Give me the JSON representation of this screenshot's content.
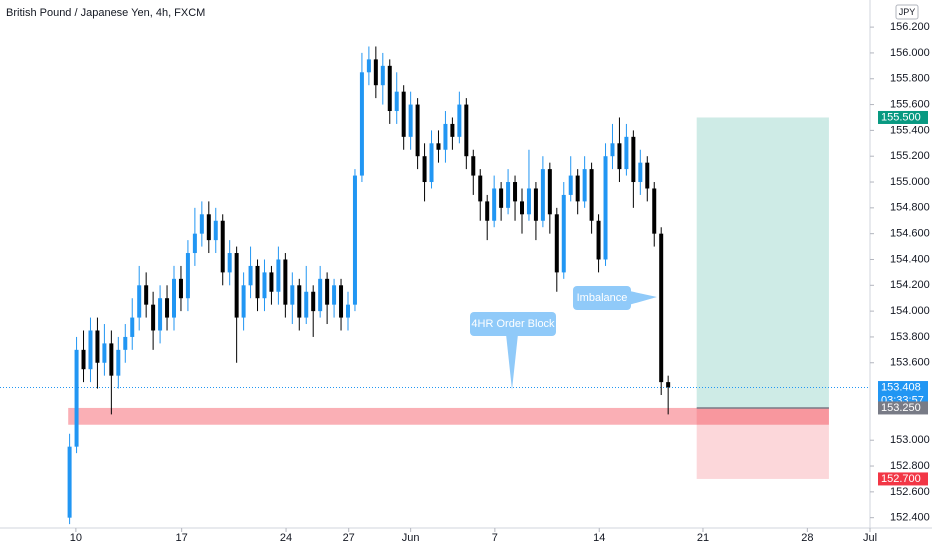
{
  "chart_data": {
    "type": "candlestick",
    "title": "British Pound / Japanese Yen, 4h, FXCM",
    "currency": "JPY",
    "up_color": "#2196f3",
    "down_color": "#000000",
    "x": [
      0,
      1,
      2,
      3,
      4,
      5,
      6,
      7,
      8,
      9,
      10,
      11,
      12,
      13,
      14,
      15,
      16,
      17,
      18,
      19,
      20,
      21,
      22,
      23,
      24,
      25,
      26,
      27,
      28,
      29,
      30,
      31,
      32,
      33,
      34,
      35,
      36,
      37,
      38,
      39,
      40,
      41,
      42,
      43,
      44,
      45,
      46,
      47,
      48,
      49,
      50,
      51,
      52,
      53,
      54,
      55,
      56,
      57,
      58,
      59,
      60,
      61,
      62,
      63,
      64,
      65,
      66,
      67,
      68,
      69,
      70,
      71,
      72,
      73,
      74,
      75,
      76,
      77,
      78,
      79,
      80,
      81,
      82,
      83,
      84,
      85,
      86
    ],
    "open": [
      152.4,
      152.95,
      153.7,
      153.55,
      153.85,
      153.6,
      153.75,
      153.5,
      153.7,
      153.8,
      153.95,
      154.2,
      154.05,
      153.85,
      154.1,
      153.95,
      154.25,
      154.1,
      154.45,
      154.6,
      154.75,
      154.55,
      154.7,
      154.3,
      154.45,
      153.95,
      154.2,
      154.35,
      154.1,
      154.3,
      154.15,
      154.4,
      154.05,
      154.2,
      153.95,
      154.15,
      154.0,
      154.25,
      154.05,
      154.2,
      153.95,
      154.05,
      155.05,
      155.85,
      155.95,
      155.75,
      155.9,
      155.55,
      155.7,
      155.35,
      155.6,
      155.2,
      155.0,
      155.3,
      155.25,
      155.45,
      155.35,
      155.6,
      155.2,
      155.05,
      154.85,
      154.7,
      154.95,
      154.8,
      155.0,
      154.85,
      154.75,
      154.95,
      154.7,
      155.1,
      154.75,
      154.3,
      154.9,
      155.05,
      154.85,
      155.1,
      154.7,
      154.4,
      155.2,
      155.3,
      155.1,
      155.35,
      155.0,
      155.15,
      154.95,
      154.6,
      153.45
    ],
    "high": [
      153.05,
      153.8,
      153.85,
      153.95,
      153.95,
      153.9,
      153.85,
      153.8,
      153.9,
      154.1,
      154.35,
      154.3,
      154.15,
      154.2,
      154.2,
      154.35,
      154.35,
      154.55,
      154.8,
      154.85,
      154.85,
      154.8,
      154.75,
      154.55,
      154.5,
      154.3,
      154.5,
      154.4,
      154.4,
      154.35,
      154.5,
      154.45,
      154.3,
      154.25,
      154.35,
      154.2,
      154.35,
      154.3,
      154.25,
      154.25,
      154.15,
      155.1,
      156.0,
      156.05,
      156.05,
      156.0,
      155.95,
      155.85,
      155.75,
      155.7,
      155.65,
      155.3,
      155.4,
      155.4,
      155.55,
      155.5,
      155.7,
      155.65,
      155.25,
      155.1,
      154.9,
      155.05,
      155.0,
      155.1,
      155.05,
      154.95,
      155.25,
      155.0,
      155.2,
      155.15,
      154.8,
      155.0,
      155.2,
      155.1,
      155.2,
      155.15,
      154.75,
      155.3,
      155.45,
      155.5,
      155.45,
      155.4,
      155.25,
      155.2,
      155.0,
      154.65,
      153.5
    ],
    "low": [
      152.35,
      152.9,
      153.45,
      153.45,
      153.4,
      153.5,
      153.2,
      153.4,
      153.6,
      153.7,
      153.85,
      153.95,
      153.7,
      153.75,
      153.85,
      153.85,
      154.0,
      154.0,
      154.35,
      154.5,
      154.45,
      154.45,
      154.2,
      154.2,
      153.6,
      153.85,
      154.1,
      154.0,
      154.0,
      154.05,
      154.05,
      153.95,
      153.9,
      153.85,
      153.9,
      153.8,
      153.95,
      153.9,
      153.95,
      153.85,
      153.85,
      154.0,
      155.0,
      155.75,
      155.65,
      155.6,
      155.45,
      155.45,
      155.25,
      155.25,
      155.1,
      154.85,
      154.95,
      155.15,
      155.15,
      155.25,
      155.3,
      155.1,
      154.9,
      154.7,
      154.55,
      154.65,
      154.7,
      154.75,
      154.7,
      154.6,
      154.7,
      154.55,
      154.65,
      154.6,
      154.15,
      154.25,
      154.85,
      154.75,
      154.8,
      154.6,
      154.3,
      154.35,
      155.1,
      155.0,
      155.05,
      154.8,
      154.9,
      154.85,
      154.5,
      153.35,
      153.2
    ],
    "close": [
      152.95,
      153.7,
      153.55,
      153.85,
      153.6,
      153.75,
      153.5,
      153.7,
      153.8,
      153.95,
      154.2,
      154.05,
      153.85,
      154.1,
      153.95,
      154.25,
      154.1,
      154.45,
      154.6,
      154.75,
      154.55,
      154.7,
      154.3,
      154.45,
      153.95,
      154.2,
      154.35,
      154.1,
      154.3,
      154.15,
      154.4,
      154.05,
      154.2,
      153.95,
      154.15,
      154.0,
      154.25,
      154.05,
      154.2,
      153.95,
      154.05,
      155.05,
      155.85,
      155.95,
      155.75,
      155.9,
      155.55,
      155.7,
      155.35,
      155.6,
      155.2,
      155.0,
      155.3,
      155.25,
      155.45,
      155.35,
      155.6,
      155.2,
      155.05,
      154.85,
      154.7,
      154.95,
      154.8,
      155.0,
      154.85,
      154.75,
      154.95,
      154.7,
      155.1,
      154.75,
      154.3,
      154.9,
      155.05,
      154.85,
      155.1,
      154.7,
      154.4,
      155.2,
      155.3,
      155.1,
      155.35,
      155.0,
      155.15,
      154.95,
      154.6,
      153.45,
      153.41
    ],
    "xlim": [
      -10,
      115
    ],
    "ylim": [
      152.32,
      156.41
    ],
    "xticks": [
      {
        "value": 0.9,
        "label": "10"
      },
      {
        "value": 16.1,
        "label": "17"
      },
      {
        "value": 31.1,
        "label": "24"
      },
      {
        "value": 40.1,
        "label": "27"
      },
      {
        "value": 49,
        "label": "Jun"
      },
      {
        "value": 61.1,
        "label": "7"
      },
      {
        "value": 76.1,
        "label": "14"
      },
      {
        "value": 91,
        "label": "21"
      },
      {
        "value": 106,
        "label": "28"
      },
      {
        "value": 115,
        "label": "Jul"
      }
    ],
    "yticks": [
      {
        "value": 152.4,
        "label": "152.400"
      },
      {
        "value": 152.6,
        "label": "152.600"
      },
      {
        "value": 152.8,
        "label": "152.800"
      },
      {
        "value": 153.0,
        "label": "153.000"
      },
      {
        "value": 153.6,
        "label": "153.600"
      },
      {
        "value": 153.8,
        "label": "153.800"
      },
      {
        "value": 154.0,
        "label": "154.000"
      },
      {
        "value": 154.2,
        "label": "154.200"
      },
      {
        "value": 154.4,
        "label": "154.400"
      },
      {
        "value": 154.6,
        "label": "154.600"
      },
      {
        "value": 154.8,
        "label": "154.800"
      },
      {
        "value": 155.0,
        "label": "155.000"
      },
      {
        "value": 155.2,
        "label": "155.200"
      },
      {
        "value": 155.4,
        "label": "155.400"
      },
      {
        "value": 155.6,
        "label": "155.600"
      },
      {
        "value": 155.8,
        "label": "155.800"
      },
      {
        "value": 156.0,
        "label": "156.000"
      },
      {
        "value": 156.2,
        "label": "156.200"
      }
    ],
    "last_price": 153.408,
    "last_price_label": "153.408",
    "countdown": "03:33:57",
    "position": {
      "x": [
        90.1,
        109.1
      ],
      "target": 155.5,
      "target_label": "155.500",
      "entry": 153.25,
      "entry_label": "153.250",
      "stop": 152.7,
      "stop_label": "152.700"
    },
    "zone": {
      "x": [
        -0.2,
        109.1
      ],
      "top": 153.25,
      "bottom": 153.12
    },
    "annotations": [
      "Imbalance",
      "4HR Order Block"
    ]
  }
}
